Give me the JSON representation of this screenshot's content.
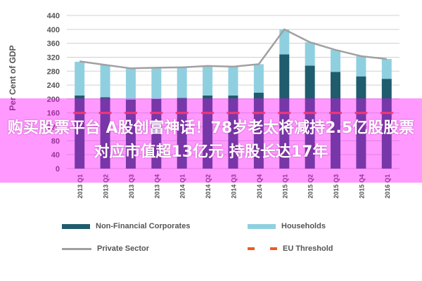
{
  "banner": {
    "text": "购买股票平台 A股创富神话！78岁老太将减持2.5亿股股票 对应市值超13亿元 持股长达17年"
  },
  "chart_data": {
    "type": "bar",
    "stacked": true,
    "ylabel": "Per Cent of GDP",
    "ylim": [
      0,
      440
    ],
    "yticks": [
      0,
      40,
      80,
      120,
      160,
      200,
      240,
      280,
      320,
      360,
      400,
      440
    ],
    "categories": [
      "2013 Q1",
      "2013 Q2",
      "2013 Q3",
      "2013 Q4",
      "2014 Q1",
      "2014 Q2",
      "2014 Q3",
      "2014 Q4",
      "2015 Q1",
      "2015 Q2",
      "2015 Q3",
      "2015 Q4",
      "2016 Q1"
    ],
    "series": [
      {
        "name": "Non-Financial Corporates",
        "kind": "bar",
        "color": "#1f5c6e",
        "values": [
          210,
          205,
          198,
          200,
          203,
          210,
          210,
          218,
          328,
          296,
          278,
          265,
          258
        ]
      },
      {
        "name": "Households",
        "kind": "bar",
        "color": "#8fd0e0",
        "values": [
          97,
          93,
          90,
          90,
          88,
          85,
          83,
          82,
          72,
          67,
          63,
          58,
          57
        ]
      },
      {
        "name": "Private Sector",
        "kind": "line",
        "color": "#a0a0a0",
        "values": [
          308,
          298,
          288,
          290,
          291,
          295,
          293,
          300,
          400,
          363,
          341,
          323,
          315
        ]
      },
      {
        "name": "EU Threshold",
        "kind": "dashed",
        "color": "#f05a1e",
        "values": [
          160,
          160,
          160,
          160,
          160,
          160,
          160,
          160,
          160,
          160,
          160,
          160,
          160
        ]
      }
    ],
    "grid": true,
    "legend": "bottom"
  }
}
